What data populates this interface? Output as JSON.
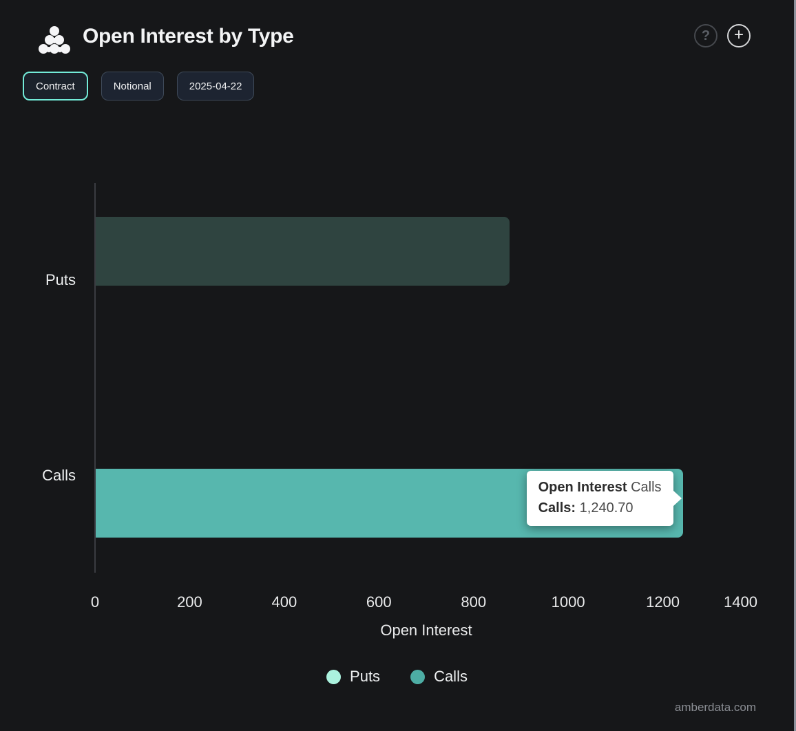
{
  "header": {
    "title": "Open Interest by Type",
    "help_icon": "?",
    "add_icon": "+"
  },
  "toolbar": {
    "buttons": [
      {
        "label": "Contract",
        "active": true
      },
      {
        "label": "Notional",
        "active": false
      },
      {
        "label": "2025-04-22",
        "active": false
      }
    ]
  },
  "chart_data": {
    "type": "bar",
    "orientation": "horizontal",
    "title": "Open Interest by Type",
    "categories": [
      "Puts",
      "Calls"
    ],
    "series": [
      {
        "name": "Puts",
        "value": 874,
        "bar_color": "#2f4440",
        "legend_color": "#abf2de",
        "state": "dimmed"
      },
      {
        "name": "Calls",
        "value": 1240.7,
        "bar_color": "#57b7ae",
        "legend_color": "#4dada4",
        "state": "highlighted"
      }
    ],
    "xlabel": "Open Interest",
    "xlim": [
      0,
      1400
    ],
    "xticks": [
      0,
      200,
      400,
      600,
      800,
      1000,
      1200,
      1400
    ],
    "grid": false,
    "legend_position": "bottom",
    "tooltip": {
      "title_bold": "Open Interest",
      "title_suffix": "Calls",
      "row_label": "Calls:",
      "row_value": "1,240.70"
    }
  },
  "watermark": "amberdata.com"
}
